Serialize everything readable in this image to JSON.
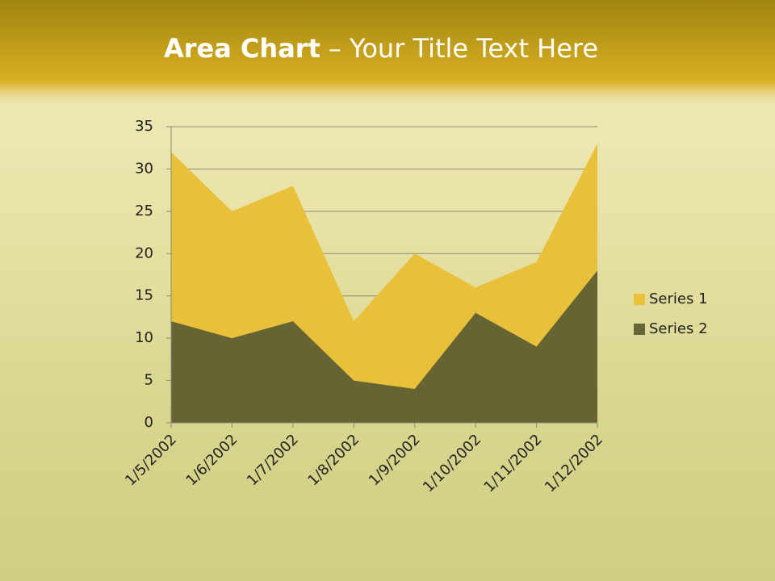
{
  "chart_data": {
    "type": "area",
    "title_bold": "Area Chart",
    "title_rest": "– Your Title Text Here",
    "categories": [
      "1/5/2002",
      "1/6/2002",
      "1/7/2002",
      "1/8/2002",
      "1/9/2002",
      "1/10/2002",
      "1/11/2002",
      "1/12/2002"
    ],
    "series": [
      {
        "name": "Series 1",
        "color": "#e8c03a",
        "values": [
          32,
          25,
          28,
          12,
          20,
          16,
          19,
          33
        ]
      },
      {
        "name": "Series 2",
        "color": "#676434",
        "values": [
          12,
          10,
          12,
          5,
          4,
          13,
          9,
          18
        ]
      }
    ],
    "ylim": [
      0,
      35
    ],
    "yticks": [
      0,
      5,
      10,
      15,
      20,
      25,
      30,
      35
    ],
    "grid": true,
    "legend": "right"
  }
}
